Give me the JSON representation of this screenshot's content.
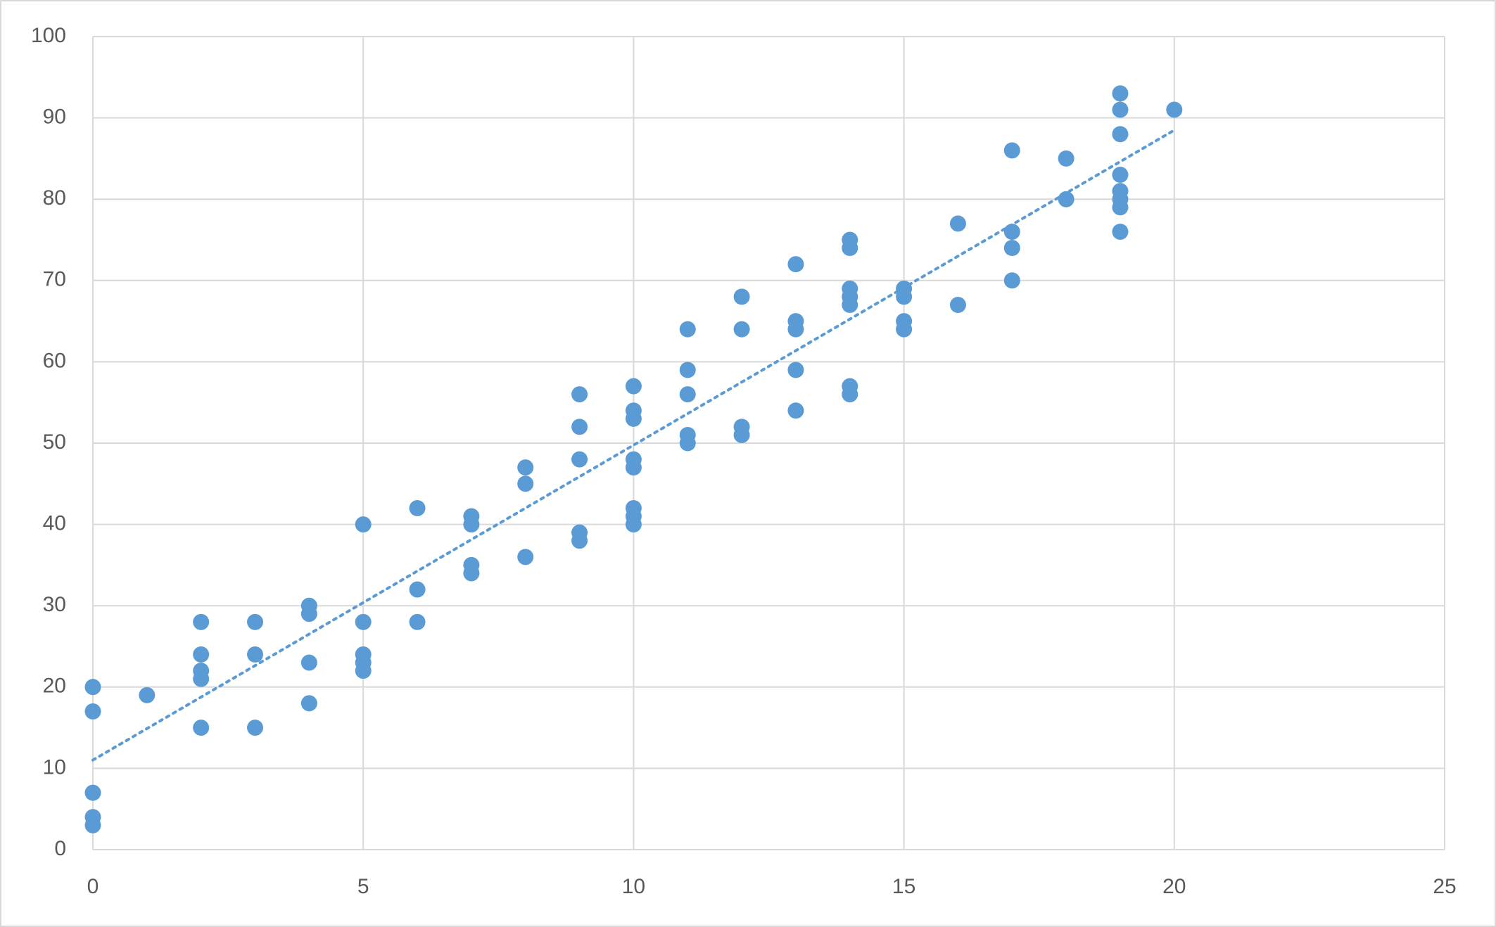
{
  "chart_data": {
    "type": "scatter",
    "x": [
      0,
      0,
      0,
      0,
      0,
      1,
      2,
      2,
      2,
      2,
      2,
      3,
      3,
      3,
      4,
      4,
      4,
      4,
      5,
      5,
      5,
      5,
      5,
      6,
      6,
      6,
      7,
      7,
      7,
      7,
      8,
      8,
      8,
      9,
      9,
      9,
      9,
      9,
      10,
      10,
      10,
      10,
      10,
      10,
      10,
      10,
      11,
      11,
      11,
      11,
      11,
      12,
      12,
      12,
      12,
      13,
      13,
      13,
      13,
      13,
      14,
      14,
      14,
      14,
      14,
      14,
      14,
      15,
      15,
      15,
      15,
      16,
      16,
      17,
      17,
      17,
      17,
      18,
      18,
      19,
      19,
      19,
      19,
      19,
      19,
      19,
      19,
      20
    ],
    "series": [
      {
        "color": "#5b9bd5",
        "values": [
          20,
          17,
          7,
          4,
          3,
          19,
          28,
          24,
          22,
          21,
          15,
          28,
          24,
          15,
          30,
          29,
          23,
          18,
          40,
          28,
          24,
          23,
          22,
          42,
          32,
          28,
          41,
          40,
          35,
          34,
          47,
          45,
          36,
          56,
          52,
          48,
          39,
          38,
          57,
          54,
          53,
          48,
          47,
          42,
          41,
          40,
          64,
          59,
          56,
          51,
          50,
          68,
          64,
          52,
          51,
          72,
          65,
          64,
          59,
          54,
          75,
          74,
          69,
          68,
          67,
          57,
          56,
          69,
          68,
          65,
          64,
          77,
          67,
          86,
          76,
          74,
          70,
          85,
          80,
          93,
          91,
          88,
          83,
          81,
          80,
          79,
          76,
          91
        ]
      }
    ],
    "trendline": "linear",
    "xlim": [
      0,
      25
    ],
    "xticks": [
      0,
      5,
      10,
      15,
      20,
      25
    ],
    "ylim": [
      0,
      100
    ],
    "yticks": [
      0,
      10,
      20,
      30,
      40,
      50,
      60,
      70,
      80,
      90,
      100
    ],
    "grid": true
  }
}
